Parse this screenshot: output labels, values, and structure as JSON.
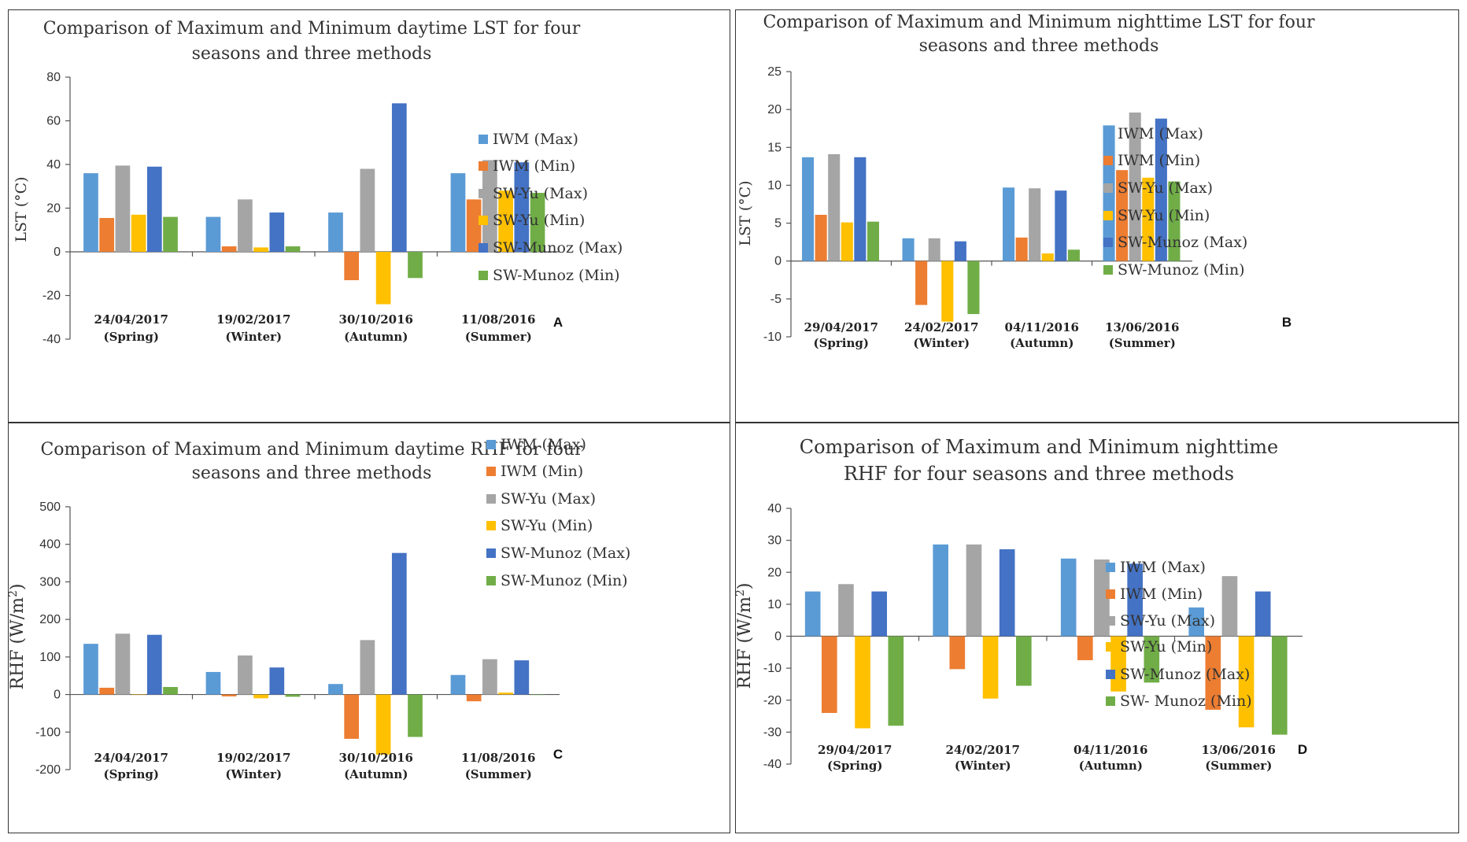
{
  "colors": {
    "IWM (Max)": "#5b9bd5",
    "IWM (Min)": "#ed7d31",
    "SW-Yu (Max)": "#a5a5a5",
    "SW-Yu (Min)": "#ffc000",
    "SW-Munoz (Max)": "#4472c4",
    "SW-Munoz (Min)": "#70ad47"
  },
  "chart_data": [
    {
      "id": "A",
      "type": "bar",
      "panel_letter": "A",
      "title_lines": [
        "Comparison  of Maximum and Minimum daytime LST for four",
        "seasons and three methods"
      ],
      "ylabel": "LST (°C)",
      "ylim": [
        -40,
        80
      ],
      "yticks": [
        -40,
        -20,
        0,
        20,
        40,
        60,
        80
      ],
      "categories": [
        [
          "24/04/2017",
          "(Spring)"
        ],
        [
          "19/02/2017",
          "(Winter)"
        ],
        [
          "30/10/2016",
          "(Autumn)"
        ],
        [
          "11/08/2016",
          "(Summer)"
        ]
      ],
      "legend_labels": [
        "IWM (Max)",
        "IWM (Min)",
        "SW-Yu (Max)",
        "SW-Yu (Min)",
        "SW-Munoz (Max)",
        "SW-Munoz (Min)"
      ],
      "series": [
        {
          "name": "IWM (Max)",
          "values": [
            36,
            16,
            18,
            36
          ]
        },
        {
          "name": "IWM (Min)",
          "values": [
            15.5,
            2.5,
            -13,
            24
          ]
        },
        {
          "name": "SW-Yu (Max)",
          "values": [
            39.5,
            24,
            38,
            42
          ]
        },
        {
          "name": "SW-Yu (Min)",
          "values": [
            17,
            2,
            -24,
            28
          ]
        },
        {
          "name": "SW-Munoz (Max)",
          "values": [
            39,
            18,
            68,
            41
          ]
        },
        {
          "name": "SW-Munoz (Min)",
          "values": [
            16,
            2.5,
            -12,
            27
          ]
        }
      ]
    },
    {
      "id": "B",
      "type": "bar",
      "panel_letter": "B",
      "title_lines": [
        "Comparison  of Maximum and Minimum nighttime LST for four",
        "seasons and three methods"
      ],
      "ylabel": "LST (°C)",
      "ylim": [
        -10,
        25
      ],
      "yticks": [
        -10,
        -5,
        0,
        5,
        10,
        15,
        20,
        25
      ],
      "categories": [
        [
          "29/04/2017",
          "(Spring)"
        ],
        [
          "24/02/2017",
          "(Winter)"
        ],
        [
          "04/11/2016",
          "(Autumn)"
        ],
        [
          "13/06/2016",
          "(Summer)"
        ]
      ],
      "legend_labels": [
        "IWM (Max)",
        "IWM (Min)",
        "SW-Yu (Max)",
        "SW-Yu (Min)",
        "SW-Munoz (Max)",
        "SW-Munoz (Min)"
      ],
      "series": [
        {
          "name": "IWM (Max)",
          "values": [
            13.7,
            3,
            9.7,
            17.9
          ]
        },
        {
          "name": "IWM (Min)",
          "values": [
            6.1,
            -5.8,
            3.1,
            12
          ]
        },
        {
          "name": "SW-Yu (Max)",
          "values": [
            14.1,
            3,
            9.6,
            19.6
          ]
        },
        {
          "name": "SW-Yu (Min)",
          "values": [
            5.1,
            -8,
            1,
            11
          ]
        },
        {
          "name": "SW-Munoz (Max)",
          "values": [
            13.7,
            2.6,
            9.3,
            18.8
          ]
        },
        {
          "name": "SW-Munoz (Min)",
          "values": [
            5.2,
            -7,
            1.5,
            10.5
          ]
        }
      ]
    },
    {
      "id": "C",
      "type": "bar",
      "panel_letter": "C",
      "title_lines": [
        "Comparison  of Maximum and Minimum daytime RHF for four",
        "seasons and three methods"
      ],
      "ylabel": "RHF (W/m",
      "ylabel_sup": "2",
      "ylabel_end": ")",
      "ylim": [
        -200,
        500
      ],
      "yticks": [
        -200,
        -100,
        0,
        100,
        200,
        300,
        400,
        500
      ],
      "categories": [
        [
          "24/04/2017",
          "(Spring)"
        ],
        [
          "19/02/2017",
          "(Winter)"
        ],
        [
          "30/10/2016",
          "(Autumn)"
        ],
        [
          "11/08/2016",
          "(Summer)"
        ]
      ],
      "legend_labels": [
        "IWM (Max)",
        "IWM (Min)",
        "SW-Yu (Max)",
        "SW-Yu (Min)",
        "SW-Munoz (Max)",
        "SW-Munoz (Min)"
      ],
      "series": [
        {
          "name": "IWM (Max)",
          "values": [
            135,
            60,
            28,
            52
          ]
        },
        {
          "name": "IWM (Min)",
          "values": [
            18,
            -5,
            -118,
            -18
          ]
        },
        {
          "name": "SW-Yu (Max)",
          "values": [
            162,
            104,
            145,
            94
          ]
        },
        {
          "name": "SW-Yu (Min)",
          "values": [
            0,
            -10,
            -160,
            5
          ]
        },
        {
          "name": "SW-Munoz (Max)",
          "values": [
            159,
            72,
            377,
            91
          ]
        },
        {
          "name": "SW-Munoz (Min)",
          "values": [
            20,
            -6,
            -113,
            0
          ]
        }
      ]
    },
    {
      "id": "D",
      "type": "bar",
      "panel_letter": "D",
      "title_lines": [
        "Comparison of Maximum and Minimum nighttime",
        "RHF for four seasons and three methods"
      ],
      "ylabel": "RHF (W/m",
      "ylabel_sup": "2",
      "ylabel_end": ")",
      "ylim": [
        -40,
        40
      ],
      "yticks": [
        -40,
        -30,
        -20,
        -10,
        0,
        10,
        20,
        30,
        40
      ],
      "categories": [
        [
          "29/04/2017",
          "(Spring)"
        ],
        [
          "24/02/2017",
          "(Winter)"
        ],
        [
          "04/11/2016",
          "(Autumn)"
        ],
        [
          "13/06/2016",
          "(Summer)"
        ]
      ],
      "legend_labels": [
        "IWM (Max)",
        "IWM (Min)",
        "SW-Yu (Max)",
        "SW-Yu (Min)",
        "SW-Munoz (Max)",
        "SW- Munoz (Min)"
      ],
      "series": [
        {
          "name": "IWM (Max)",
          "values": [
            14,
            28.7,
            24.3,
            9
          ]
        },
        {
          "name": "IWM (Min)",
          "values": [
            -24,
            -10.3,
            -7.5,
            -23
          ]
        },
        {
          "name": "SW-Yu (Max)",
          "values": [
            16.3,
            28.7,
            24,
            18.8
          ]
        },
        {
          "name": "SW-Yu (Min)",
          "values": [
            -28.8,
            -19.5,
            -17.3,
            -28.5
          ]
        },
        {
          "name": "SW-Munoz (Max)",
          "values": [
            14,
            27.2,
            22.7,
            14
          ]
        },
        {
          "name": "SW-Munoz (Min)",
          "values": [
            -28,
            -15.5,
            -14.5,
            -30.8
          ]
        }
      ]
    }
  ]
}
